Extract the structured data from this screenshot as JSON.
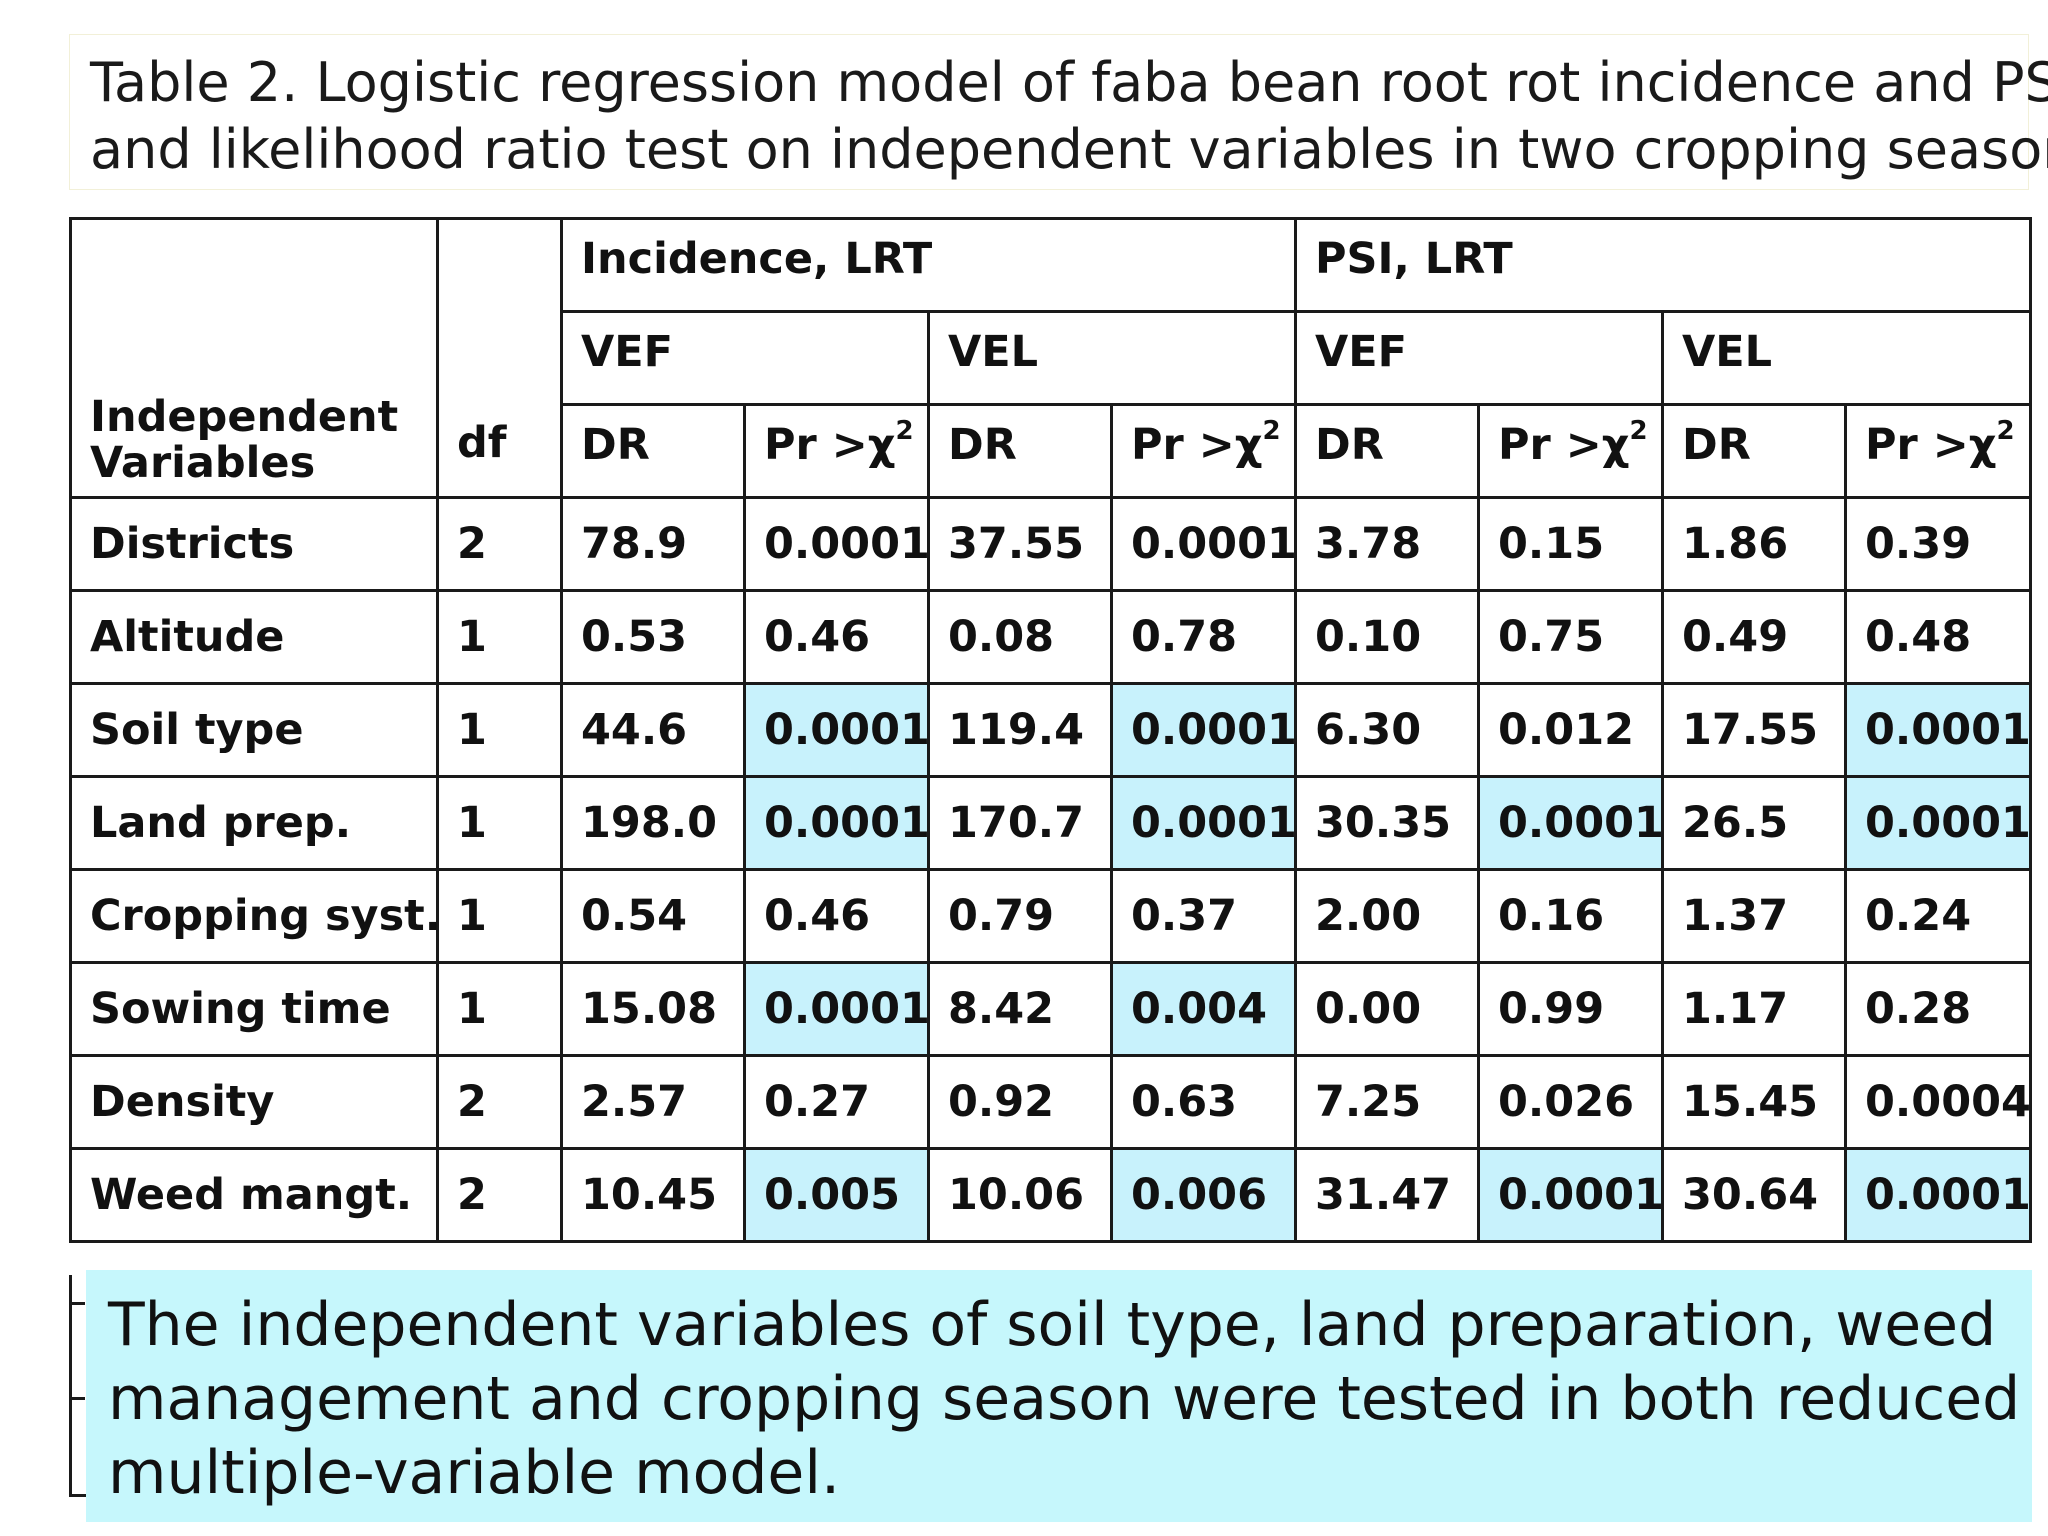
{
  "caption": {
    "line1": "Table 2. Logistic regression model of faba bean root rot incidence and PSI",
    "line2": "and likelihood ratio test on independent variables in two cropping seasons"
  },
  "header": {
    "independent_variables_line1": "Independent",
    "independent_variables_line2": "Variables",
    "df": "df",
    "incidence_lrt": "Incidence, LRT",
    "psi_lrt": "PSI, LRT",
    "vef": "VEF",
    "vel": "VEL",
    "dr": "DR",
    "pr_chi2": "Pr >χ",
    "pr_sup": "2"
  },
  "rows": [
    {
      "variable": "Districts",
      "df": "2",
      "cells": [
        "78.9",
        "0.0001",
        "37.55",
        "0.0001",
        "3.78",
        "0.15",
        "1.86",
        "0.39"
      ],
      "highlight": [
        false,
        false,
        false,
        false,
        false,
        false,
        false,
        false
      ]
    },
    {
      "variable": "Altitude",
      "df": "1",
      "cells": [
        "0.53",
        "0.46",
        "0.08",
        "0.78",
        "0.10",
        "0.75",
        "0.49",
        "0.48"
      ],
      "highlight": [
        false,
        false,
        false,
        false,
        false,
        false,
        false,
        false
      ]
    },
    {
      "variable": "Soil type",
      "df": "1",
      "cells": [
        "44.6",
        "0.0001",
        "119.4",
        "0.0001",
        "6.30",
        "0.012",
        "17.55",
        "0.0001"
      ],
      "highlight": [
        false,
        true,
        false,
        true,
        false,
        false,
        false,
        true
      ]
    },
    {
      "variable": "Land prep.",
      "df": "1",
      "cells": [
        "198.0",
        "0.0001",
        "170.7",
        "0.0001",
        "30.35",
        "0.0001",
        "26.5",
        "0.0001"
      ],
      "highlight": [
        false,
        true,
        false,
        true,
        false,
        true,
        false,
        true
      ]
    },
    {
      "variable": "Cropping syst.",
      "df": "1",
      "cells": [
        "0.54",
        "0.46",
        "0.79",
        "0.37",
        "2.00",
        "0.16",
        "1.37",
        "0.24"
      ],
      "highlight": [
        false,
        false,
        false,
        false,
        false,
        false,
        false,
        false
      ]
    },
    {
      "variable": "Sowing time",
      "df": "1",
      "cells": [
        "15.08",
        "0.0001",
        "8.42",
        "0.004",
        "0.00",
        "0.99",
        "1.17",
        "0.28"
      ],
      "highlight": [
        false,
        true,
        false,
        true,
        false,
        false,
        false,
        false
      ]
    },
    {
      "variable": "Density",
      "df": "2",
      "cells": [
        "2.57",
        "0.27",
        "0.92",
        "0.63",
        "7.25",
        "0.026",
        "15.45",
        "0.0004"
      ],
      "highlight": [
        false,
        false,
        false,
        false,
        false,
        false,
        false,
        false
      ]
    },
    {
      "variable": "Weed mangt.",
      "df": "2",
      "cells": [
        "10.45",
        "0.005",
        "10.06",
        "0.006",
        "31.47",
        "0.0001",
        "30.64",
        "0.0001"
      ],
      "highlight": [
        false,
        true,
        false,
        true,
        false,
        true,
        false,
        true
      ]
    }
  ],
  "colors": {
    "highlight": "#c8f2fc",
    "note_background": "#c6f7fc",
    "border": "#1a1a1a"
  },
  "note": {
    "line1": "The independent variables of soil type, land preparation, weed",
    "line2": "management and cropping season were tested in both reduced",
    "line3": "multiple-variable model."
  }
}
